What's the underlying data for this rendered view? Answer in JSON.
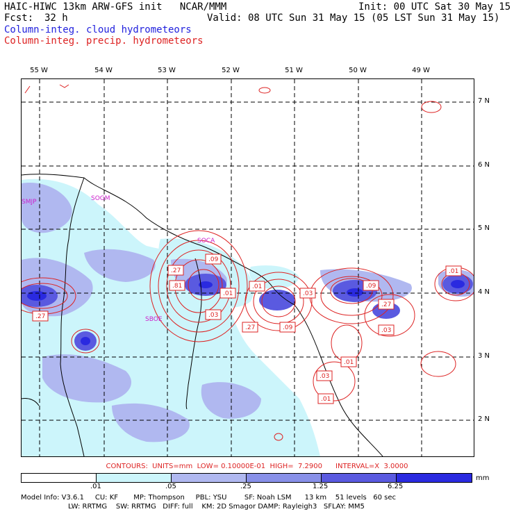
{
  "header": {
    "title": "HAIC-HIWC 13km ARW-GFS init   NCAR/MMM",
    "init": "Init: 00 UTC Sat 30 May 15",
    "fcst_label": "Fcst:",
    "fcst_value": "32 h",
    "valid": "Valid: 08 UTC Sun 31 May 15 (05 LST Sun 31 May 15)",
    "field_cloud": "Column-integ. cloud hydrometeors",
    "field_precip": "Column-integ. precip. hydrometeors"
  },
  "colors": {
    "cloud_blue": "#2222dd",
    "precip_red": "#dd2222",
    "shade_1": "#ccf5fb",
    "shade_2": "#b0b8f0",
    "shade_3": "#8890e8",
    "shade_4": "#5a5ae0",
    "shade_5": "#2a2ae0",
    "station_magenta": "#cc22cc"
  },
  "map": {
    "lon_labels": [
      "55 W",
      "54 W",
      "53 W",
      "52 W",
      "51 W",
      "50 W",
      "49 W"
    ],
    "lat_labels": [
      "7 N",
      "6 N",
      "5 N",
      "4 N",
      "3 N",
      "2 N"
    ],
    "stations": [
      "SMJP",
      "SOGM",
      "SOCA",
      "SBOE"
    ],
    "contour_labels": [
      ".09",
      ".27",
      ".81",
      ".01",
      ".03",
      ".01",
      ".03",
      ".27",
      ".09",
      ".09",
      ".27",
      ".03",
      ".01",
      ".01",
      ".03",
      ".01",
      ".27"
    ]
  },
  "contour_info": {
    "text": "CONTOURS:  UNITS=mm  LOW= 0.10000E-01  HIGH=  7.2900      INTERVAL=X  3.0000"
  },
  "colorbar": {
    "ticks": [
      ".01",
      ".05",
      ".25",
      "1.25",
      "6.25"
    ],
    "units": "mm"
  },
  "model_info": {
    "line1": "Model Info: V3.6.1     CU: KF       MP: Thompson     PBL: YSU        SF: Noah LSM      13 km    51 levels   60 sec",
    "line2": "LW: RRTMG    SW: RRTMG   DIFF: full    KM: 2D Smagor DAMP: Rayleigh3   SFLAY: MM5"
  }
}
